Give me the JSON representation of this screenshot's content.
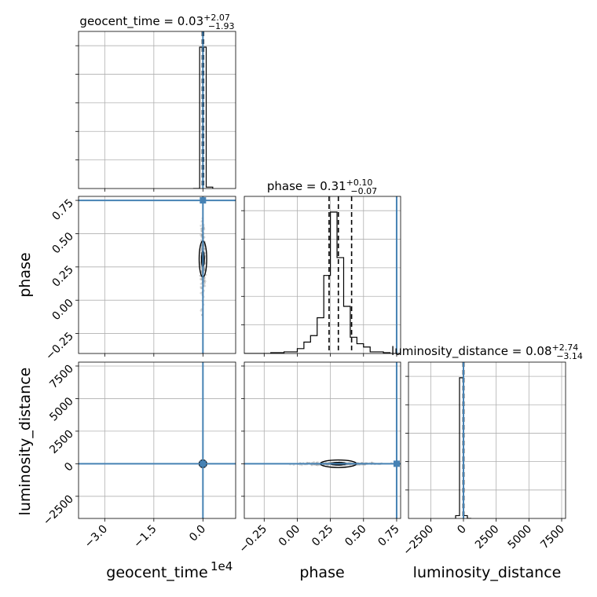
{
  "chart_data": {
    "type": "corner",
    "parameters": [
      "geocent_time",
      "phase",
      "luminosity_distance"
    ],
    "axis_labels": [
      "geocent_time",
      "phase",
      "luminosity_distance"
    ],
    "axis_offset_text": {
      "geocent_time": "1e4"
    },
    "titles": [
      {
        "parameter": "geocent_time",
        "prefix": "geocent_time = ",
        "median": "0.03",
        "upper": "+2.07",
        "lower": "−1.93"
      },
      {
        "parameter": "phase",
        "prefix": "phase = ",
        "median": "0.31",
        "upper": "+0.10",
        "lower": "−0.07"
      },
      {
        "parameter": "luminosity_distance",
        "prefix": "luminosity_distance = ",
        "median": "0.08",
        "upper": "+2.74",
        "lower": "−3.14"
      }
    ],
    "ranges": {
      "geocent_time": [
        -3.8,
        1.0
      ],
      "phase": [
        -0.4,
        0.78
      ],
      "luminosity_distance": [
        -4200,
        7800
      ]
    },
    "ticks": {
      "geocent_time": {
        "values": [
          -3.0,
          -1.5,
          0.0
        ],
        "labels": [
          "−3.0",
          "−1.5",
          "0.0"
        ]
      },
      "phase": {
        "values": [
          -0.25,
          0.0,
          0.25,
          0.5,
          0.75
        ],
        "labels": [
          "−0.25",
          "0.00",
          "0.25",
          "0.50",
          "0.75"
        ]
      },
      "luminosity_distance": {
        "values": [
          -2500,
          0,
          2500,
          5000,
          7500
        ],
        "labels": [
          "−2500",
          "0",
          "2500",
          "5000",
          "7500"
        ]
      }
    },
    "truths": {
      "geocent_time": 0.0,
      "phase": 0.75,
      "luminosity_distance": 0
    },
    "quantiles": {
      "geocent_time": [
        -0.02,
        0.0,
        0.02
      ],
      "phase": [
        0.24,
        0.31,
        0.41
      ],
      "luminosity_distance": [
        -30,
        0,
        30
      ]
    },
    "histograms": {
      "geocent_time": {
        "edges": [
          -0.3,
          -0.1,
          0.1,
          0.3
        ],
        "counts": [
          0,
          1.0,
          0.01
        ]
      },
      "phase": {
        "edges": [
          -0.4,
          -0.3,
          -0.2,
          -0.1,
          0.0,
          0.05,
          0.1,
          0.15,
          0.2,
          0.25,
          0.3,
          0.35,
          0.4,
          0.45,
          0.5,
          0.55,
          0.6,
          0.65,
          0.7,
          0.78
        ],
        "counts": [
          0,
          0,
          0.005,
          0.01,
          0.03,
          0.07,
          0.11,
          0.22,
          0.48,
          0.87,
          0.59,
          0.29,
          0.1,
          0.06,
          0.04,
          0.01,
          0.01,
          0.005,
          0.0
        ]
      },
      "luminosity_distance": {
        "edges": [
          -600,
          -300,
          0,
          300,
          600
        ],
        "counts": [
          0.02,
          1.0,
          0.02,
          0.0
        ]
      }
    },
    "grid": true
  }
}
